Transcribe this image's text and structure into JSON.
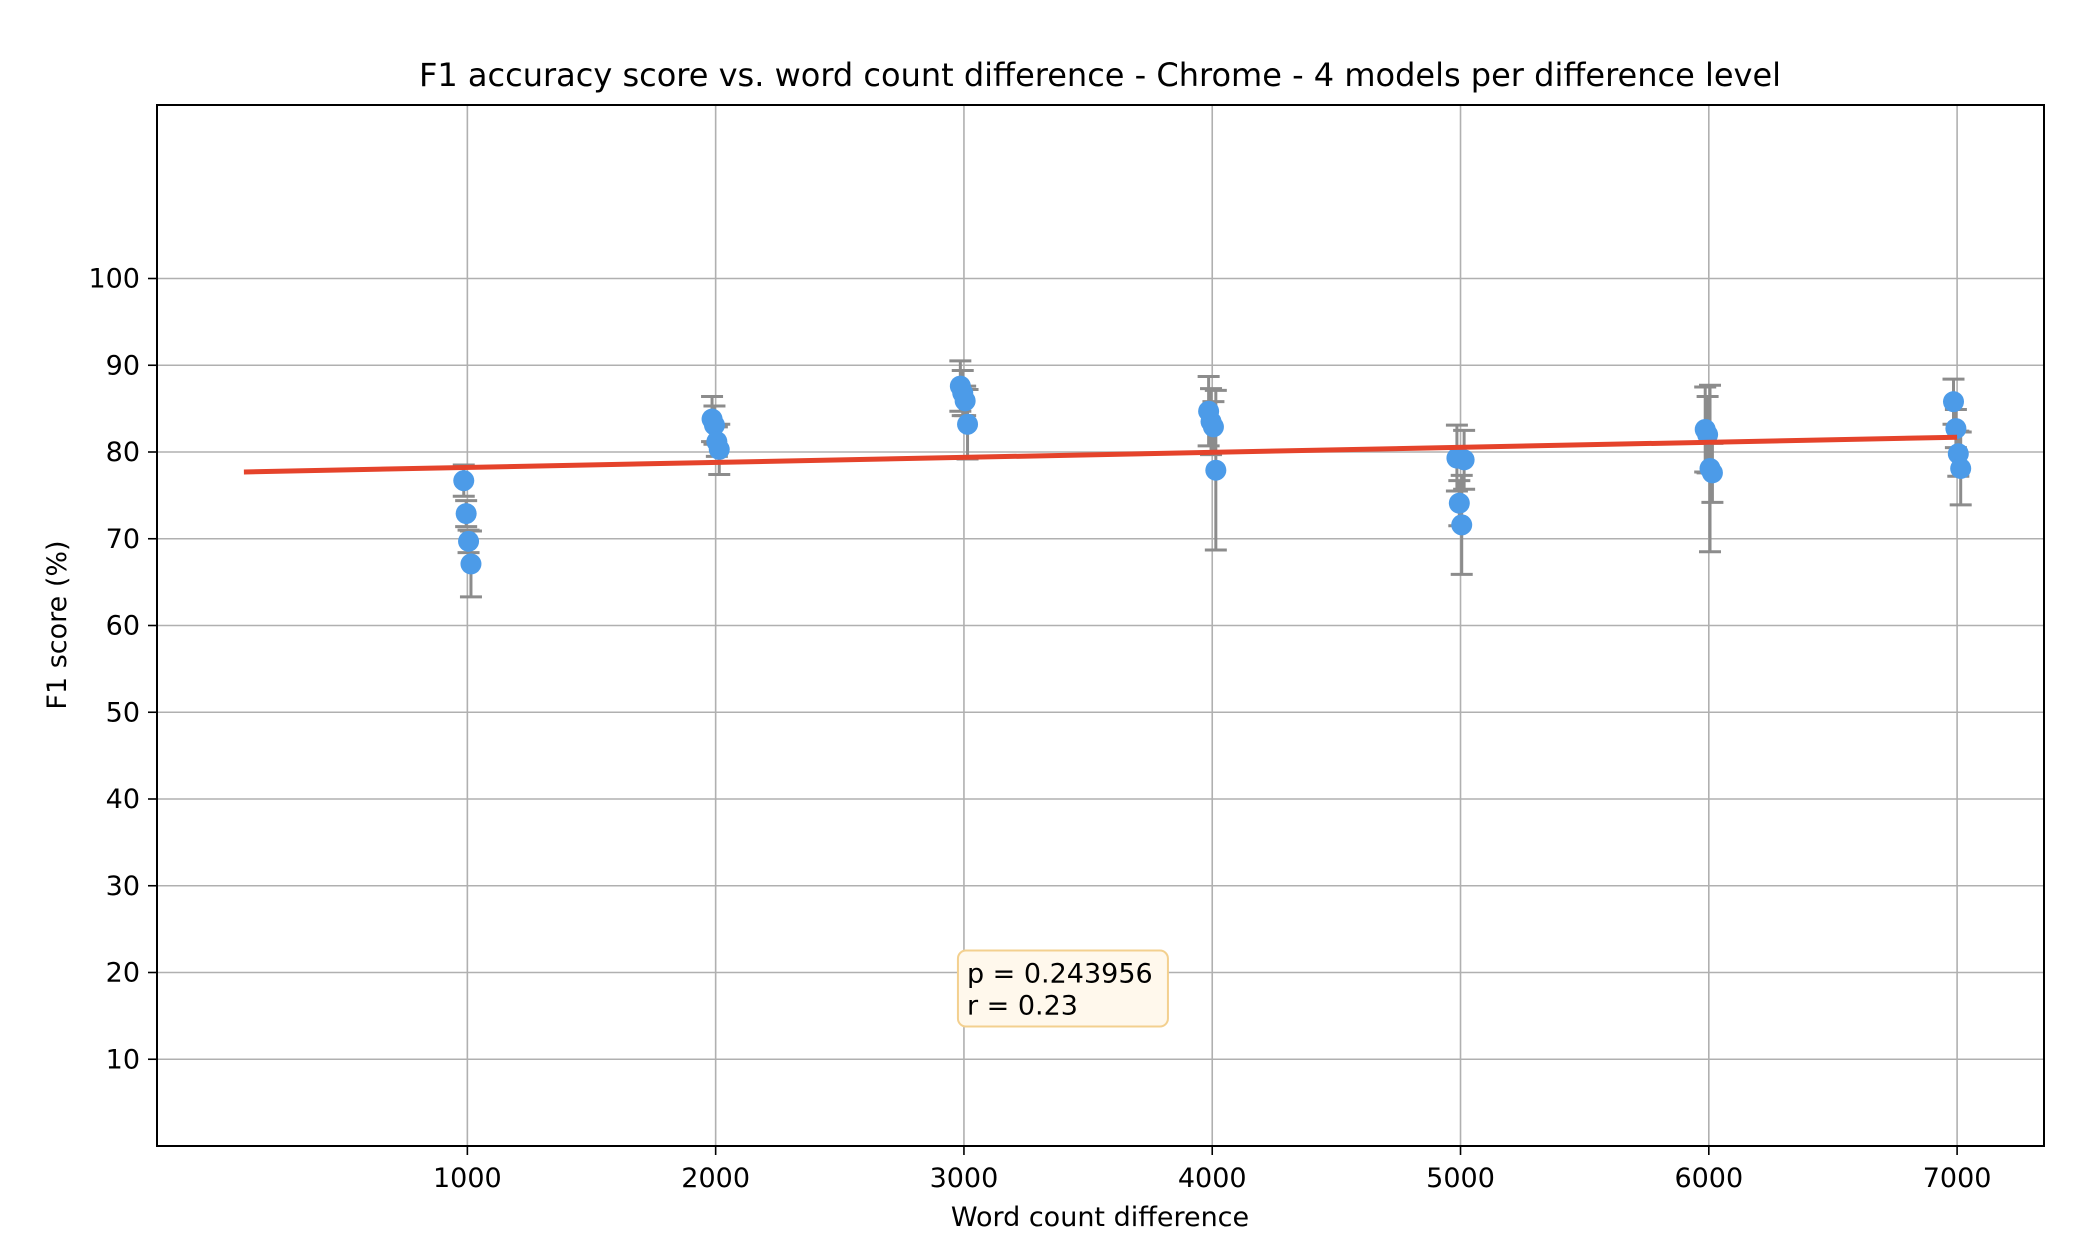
{
  "chart_data": {
    "type": "scatter",
    "title": "F1 accuracy score vs. word count difference - Chrome - 4 models per difference level",
    "xlabel": "Word count difference",
    "ylabel": "F1 score (%)",
    "xlim": [
      -250,
      7350
    ],
    "ylim": [
      0,
      120
    ],
    "x_ticks": [
      1000,
      2000,
      3000,
      4000,
      5000,
      6000,
      7000
    ],
    "y_ticks": [
      10,
      20,
      30,
      40,
      50,
      60,
      70,
      80,
      90,
      100
    ],
    "grid": true,
    "colors": {
      "points": "#4c9be8",
      "errorbars": "#8c8c8c",
      "trendline": "#e5432b",
      "annotation_bg": "#fff8ec",
      "annotation_border": "#f3d08f"
    },
    "points": [
      {
        "x": 1000,
        "y": 76.7,
        "err": 1.8
      },
      {
        "x": 1000,
        "y": 72.9,
        "err": 1.5
      },
      {
        "x": 1000,
        "y": 69.7,
        "err": 1.3
      },
      {
        "x": 1000,
        "y": 67.1,
        "err": 3.8
      },
      {
        "x": 2000,
        "y": 83.8,
        "err": 2.6
      },
      {
        "x": 2000,
        "y": 83.1,
        "err": 2.2
      },
      {
        "x": 2000,
        "y": 81.2,
        "err": 1.7
      },
      {
        "x": 2000,
        "y": 80.3,
        "err": 2.9
      },
      {
        "x": 3000,
        "y": 87.6,
        "err": 2.9
      },
      {
        "x": 3000,
        "y": 86.8,
        "err": 2.6
      },
      {
        "x": 3000,
        "y": 85.9,
        "err": 1.7
      },
      {
        "x": 3000,
        "y": 83.2,
        "err": 4.0
      },
      {
        "x": 4000,
        "y": 84.7,
        "err": 4.0
      },
      {
        "x": 4000,
        "y": 83.5,
        "err": 3.8
      },
      {
        "x": 4000,
        "y": 82.9,
        "err": 2.9
      },
      {
        "x": 4000,
        "y": 77.9,
        "err": 9.2
      },
      {
        "x": 5000,
        "y": 79.3,
        "err": 3.8
      },
      {
        "x": 5000,
        "y": 74.1,
        "err": 2.6
      },
      {
        "x": 5000,
        "y": 71.6,
        "err": 5.7
      },
      {
        "x": 5000,
        "y": 79.1,
        "err": 3.4
      },
      {
        "x": 6000,
        "y": 82.6,
        "err": 4.9
      },
      {
        "x": 6000,
        "y": 82.0,
        "err": 4.4
      },
      {
        "x": 6000,
        "y": 78.1,
        "err": 9.6
      },
      {
        "x": 6000,
        "y": 77.6,
        "err": 3.4
      },
      {
        "x": 7000,
        "y": 85.8,
        "err": 2.6
      },
      {
        "x": 7000,
        "y": 82.7,
        "err": 2.2
      },
      {
        "x": 7000,
        "y": 79.8,
        "err": 2.6
      },
      {
        "x": 7000,
        "y": 78.1,
        "err": 4.2
      }
    ],
    "trendline": {
      "x": [
        100,
        7000
      ],
      "y": [
        77.7,
        81.7
      ]
    },
    "annotation": {
      "lines": [
        "p = 0.243956",
        "r = 0.23"
      ],
      "anchor": {
        "x": 3000,
        "y": 17
      }
    }
  }
}
